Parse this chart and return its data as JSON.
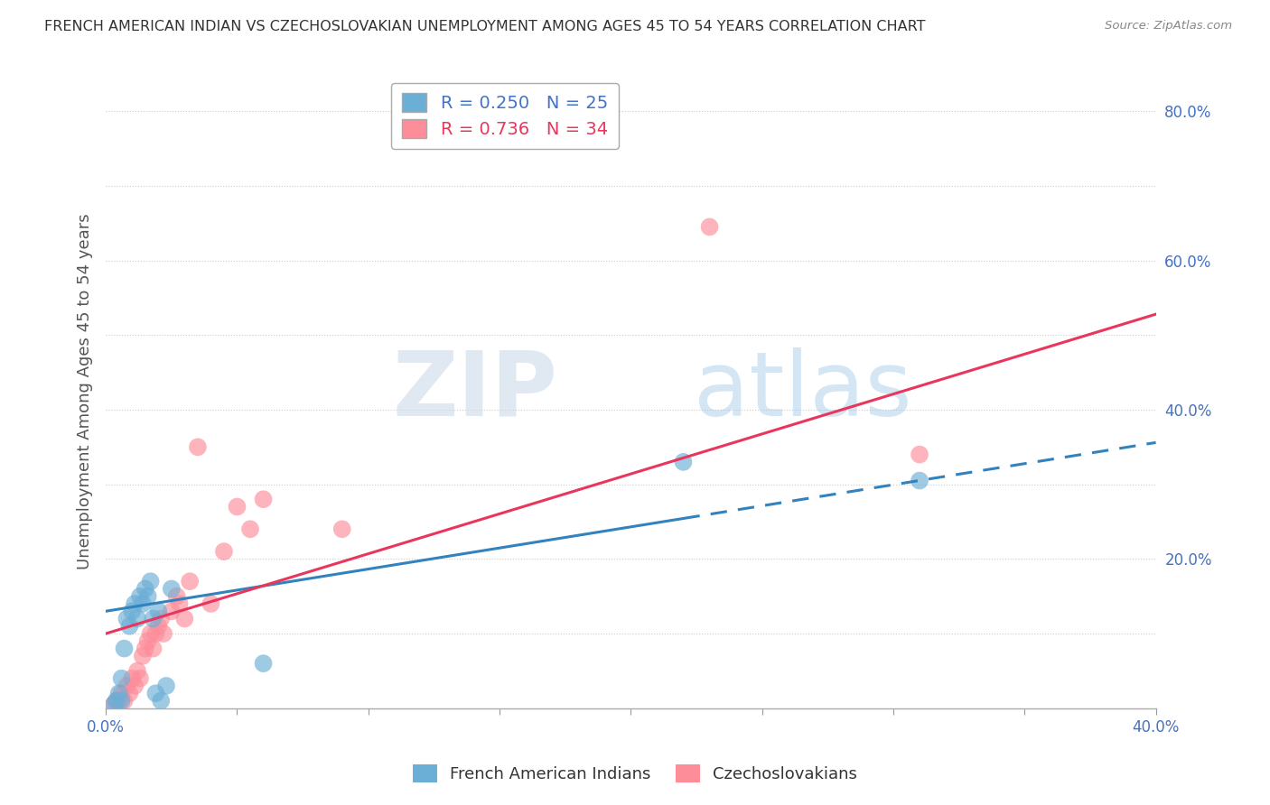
{
  "title": "FRENCH AMERICAN INDIAN VS CZECHOSLOVAKIAN UNEMPLOYMENT AMONG AGES 45 TO 54 YEARS CORRELATION CHART",
  "source": "Source: ZipAtlas.com",
  "xlabel": "",
  "ylabel": "Unemployment Among Ages 45 to 54 years",
  "xlim": [
    0.0,
    0.4
  ],
  "ylim": [
    0.0,
    0.85
  ],
  "xticks": [
    0.0,
    0.05,
    0.1,
    0.15,
    0.2,
    0.25,
    0.3,
    0.35,
    0.4
  ],
  "xticklabels": [
    "0.0%",
    "",
    "",
    "",
    "",
    "",
    "",
    "",
    "40.0%"
  ],
  "yticks": [
    0.0,
    0.1,
    0.2,
    0.3,
    0.4,
    0.5,
    0.6,
    0.7,
    0.8
  ],
  "yticklabels": [
    "",
    "",
    "20.0%",
    "",
    "40.0%",
    "",
    "60.0%",
    "",
    "80.0%"
  ],
  "blue_R": 0.25,
  "blue_N": 25,
  "pink_R": 0.736,
  "pink_N": 34,
  "blue_color": "#6baed6",
  "pink_color": "#fc8d99",
  "blue_label": "French American Indians",
  "pink_label": "Czechoslovakians",
  "watermark_zip": "ZIP",
  "watermark_atlas": "atlas",
  "blue_scatter_x": [
    0.003,
    0.004,
    0.005,
    0.006,
    0.006,
    0.007,
    0.008,
    0.009,
    0.01,
    0.011,
    0.012,
    0.013,
    0.014,
    0.015,
    0.016,
    0.017,
    0.018,
    0.019,
    0.02,
    0.021,
    0.023,
    0.025,
    0.06,
    0.22,
    0.31
  ],
  "blue_scatter_y": [
    0.005,
    0.01,
    0.02,
    0.01,
    0.04,
    0.08,
    0.12,
    0.11,
    0.13,
    0.14,
    0.12,
    0.15,
    0.14,
    0.16,
    0.15,
    0.17,
    0.12,
    0.02,
    0.13,
    0.01,
    0.03,
    0.16,
    0.06,
    0.33,
    0.305
  ],
  "pink_scatter_x": [
    0.003,
    0.004,
    0.005,
    0.006,
    0.007,
    0.008,
    0.009,
    0.01,
    0.011,
    0.012,
    0.013,
    0.014,
    0.015,
    0.016,
    0.017,
    0.018,
    0.019,
    0.02,
    0.021,
    0.022,
    0.025,
    0.027,
    0.028,
    0.03,
    0.032,
    0.035,
    0.04,
    0.045,
    0.05,
    0.055,
    0.06,
    0.09,
    0.23,
    0.31
  ],
  "pink_scatter_y": [
    0.005,
    0.01,
    0.01,
    0.02,
    0.01,
    0.03,
    0.02,
    0.04,
    0.03,
    0.05,
    0.04,
    0.07,
    0.08,
    0.09,
    0.1,
    0.08,
    0.1,
    0.11,
    0.12,
    0.1,
    0.13,
    0.15,
    0.14,
    0.12,
    0.17,
    0.35,
    0.14,
    0.21,
    0.27,
    0.24,
    0.28,
    0.24,
    0.645,
    0.34
  ],
  "blue_line_start_x": 0.0,
  "blue_line_end_x": 0.4,
  "blue_line_solid_end": 0.22,
  "blue_line_y_intercept": 0.13,
  "blue_line_slope": 0.565,
  "pink_line_start_x": 0.0,
  "pink_line_end_x": 0.4,
  "pink_line_y_intercept": 0.1,
  "pink_line_slope": 1.07,
  "background_color": "#ffffff",
  "grid_color": "#cccccc"
}
